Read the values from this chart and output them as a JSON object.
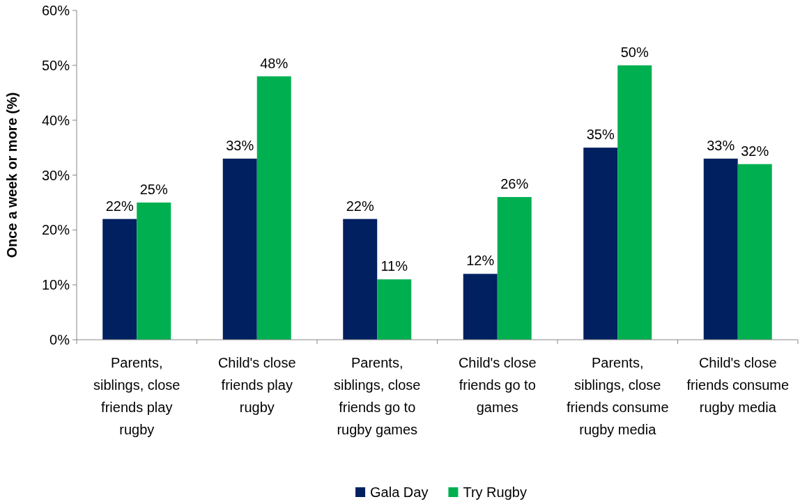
{
  "chart_data": {
    "type": "bar",
    "ylabel": "Once a week or more (%)",
    "categories": [
      "Parents, siblings, close friends play rugby",
      "Child's close friends play rugby",
      "Parents, siblings, close friends go to rugby games",
      "Child's close friends go to games",
      "Parents, siblings, close friends consume rugby media",
      "Child's close friends consume rugby media"
    ],
    "series": [
      {
        "name": "Gala Day",
        "color": "#002060",
        "values": [
          22,
          33,
          22,
          12,
          35,
          33
        ],
        "value_labels": [
          "22%",
          "33%",
          "22%",
          "12%",
          "35%",
          "33%"
        ]
      },
      {
        "name": "Try Rugby",
        "color": "#00b050",
        "values": [
          25,
          48,
          11,
          26,
          50,
          32
        ],
        "value_labels": [
          "25%",
          "48%",
          "11%",
          "26%",
          "50%",
          "32%"
        ]
      }
    ],
    "ylim": [
      0,
      60
    ],
    "yticks": [
      {
        "value": 0,
        "label": "0%"
      },
      {
        "value": 10,
        "label": "10%"
      },
      {
        "value": 20,
        "label": "20%"
      },
      {
        "value": 30,
        "label": "30%"
      },
      {
        "value": 40,
        "label": "40%"
      },
      {
        "value": 50,
        "label": "50%"
      },
      {
        "value": 60,
        "label": "60%"
      }
    ],
    "grid": false,
    "legend": "bottom"
  }
}
